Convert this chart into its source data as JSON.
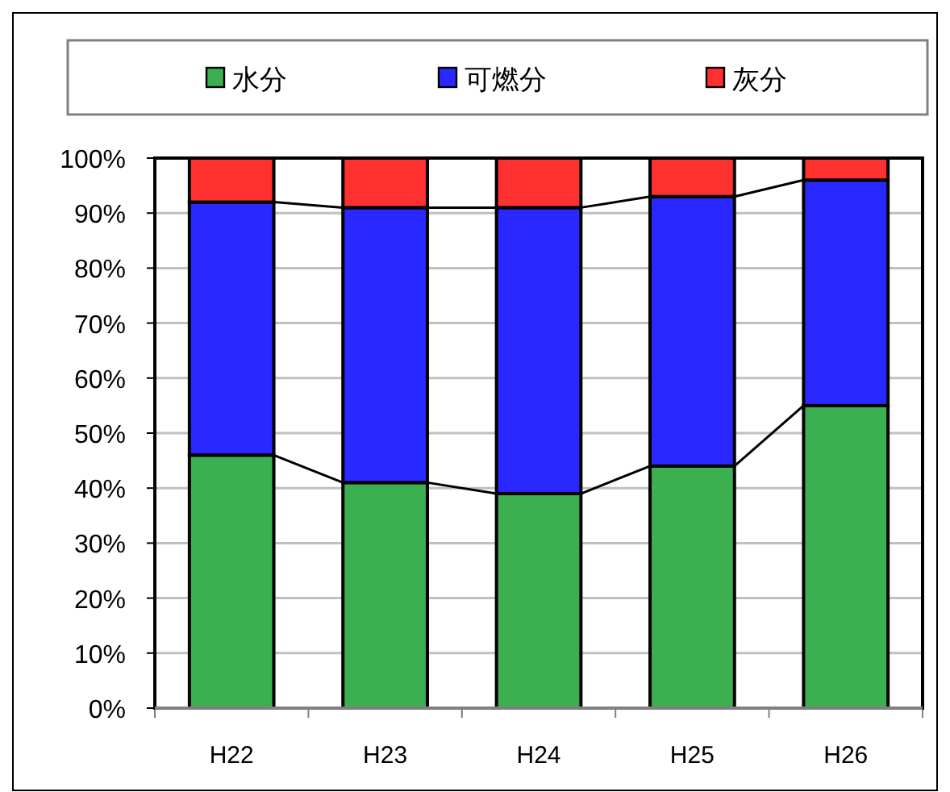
{
  "chart_data": {
    "type": "bar",
    "stacked": true,
    "categories": [
      "H22",
      "H23",
      "H24",
      "H25",
      "H26"
    ],
    "series": [
      {
        "name": "水分",
        "color": "#3cb050",
        "values": [
          46,
          41,
          39,
          44,
          55
        ]
      },
      {
        "name": "可燃分",
        "color": "#2828ff",
        "values": [
          46,
          50,
          52,
          49,
          41
        ]
      },
      {
        "name": "灰分",
        "color": "#ff3030",
        "values": [
          8,
          9,
          9,
          7,
          4
        ]
      }
    ],
    "ylim": [
      0,
      100
    ],
    "yticks": [
      {
        "value": 0,
        "label": "0%"
      },
      {
        "value": 10,
        "label": "10%"
      },
      {
        "value": 20,
        "label": "20%"
      },
      {
        "value": 30,
        "label": "30%"
      },
      {
        "value": 40,
        "label": "40%"
      },
      {
        "value": 50,
        "label": "50%"
      },
      {
        "value": 60,
        "label": "60%"
      },
      {
        "value": 70,
        "label": "70%"
      },
      {
        "value": 80,
        "label": "80%"
      },
      {
        "value": 90,
        "label": "90%"
      },
      {
        "value": 100,
        "label": "100%"
      }
    ],
    "grid": "y",
    "legend": "top"
  }
}
